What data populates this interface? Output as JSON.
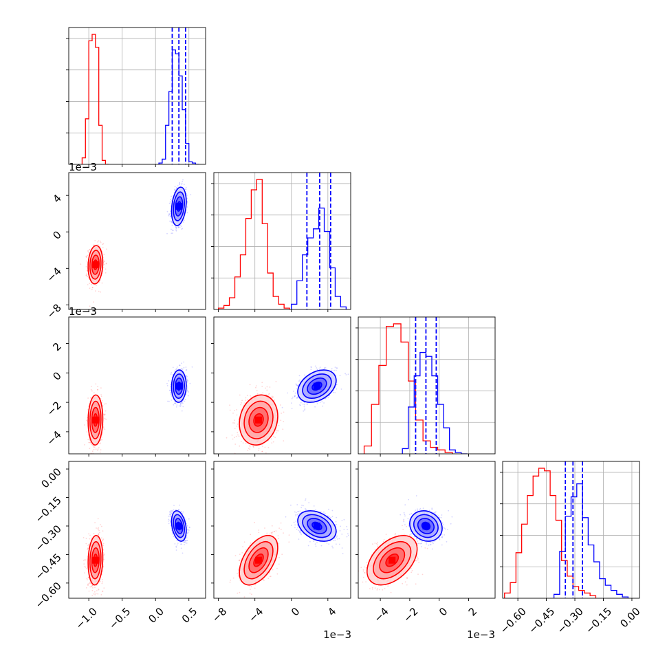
{
  "chart_data": {
    "type": "corner",
    "parameters": 4,
    "axis_labels": [
      "",
      "",
      "",
      ""
    ],
    "offset_labels": {
      "p1_x": "1e−3",
      "p1_y": "1e−3",
      "p2_x": "1e−3",
      "p2_y": "1e−3"
    },
    "ranges": [
      [
        -1.3,
        0.75
      ],
      [
        -0.0085,
        0.0065
      ],
      [
        -0.0055,
        0.0038
      ],
      [
        -0.68,
        0.04
      ]
    ],
    "ticks": [
      {
        "values": [
          -1.0,
          -0.5,
          0.0,
          0.5
        ],
        "labels": [
          "−1.0",
          "−0.5",
          "0.0",
          "0.5"
        ]
      },
      {
        "values": [
          -0.008,
          -0.004,
          0.0,
          0.004
        ],
        "labels": [
          "−8",
          "−4",
          "0",
          "4"
        ]
      },
      {
        "values": [
          -0.004,
          -0.002,
          0.0,
          0.002
        ],
        "labels": [
          "−4",
          "−2",
          "0",
          "2"
        ]
      },
      {
        "values": [
          -0.6,
          -0.45,
          -0.3,
          -0.15,
          0.0
        ],
        "labels": [
          "−0.60",
          "−0.45",
          "−0.30",
          "−0.15",
          "0.00"
        ]
      }
    ],
    "series": [
      {
        "color": "#ff0000",
        "mean": [
          -0.9,
          -0.0036,
          -0.0032,
          -0.48
        ],
        "sd": [
          0.055,
          0.00105,
          0.00085,
          0.065
        ],
        "corr": [
          [
            1,
            0.1,
            0.05,
            0.1
          ],
          [
            0.1,
            1,
            0.15,
            0.5
          ],
          [
            0.05,
            0.15,
            1,
            0.45
          ],
          [
            0.1,
            0.5,
            0.45,
            1
          ]
        ],
        "hist": [
          {
            "edges": [
              -1.1,
              -1.05,
              -1.0,
              -0.95,
              -0.9,
              -0.85,
              -0.8,
              -0.75,
              -0.7
            ],
            "heights": [
              0.05,
              0.35,
              0.95,
              1.0,
              0.9,
              0.3,
              0.03,
              0.0
            ]
          },
          {
            "edges": [
              -0.008,
              -0.0074,
              -0.0068,
              -0.0062,
              -0.0056,
              -0.005,
              -0.0044,
              -0.0038,
              -0.0032,
              -0.0026,
              -0.002,
              -0.0014,
              -0.0008,
              -0.0002
            ],
            "heights": [
              0.01,
              0.03,
              0.09,
              0.25,
              0.42,
              0.7,
              0.92,
              1.0,
              0.66,
              0.28,
              0.1,
              0.04,
              0.01
            ]
          },
          {
            "edges": [
              -0.0051,
              -0.0046,
              -0.0041,
              -0.0036,
              -0.0031,
              -0.0026,
              -0.0021,
              -0.0016,
              -0.0011,
              -0.0006,
              -0.0001,
              0.0004,
              0.0009
            ],
            "heights": [
              0.06,
              0.38,
              0.68,
              0.98,
              1.0,
              0.86,
              0.56,
              0.26,
              0.1,
              0.05,
              0.03,
              0.01
            ]
          },
          {
            "edges": [
              -0.67,
              -0.64,
              -0.61,
              -0.58,
              -0.55,
              -0.52,
              -0.49,
              -0.46,
              -0.43,
              -0.4,
              -0.37,
              -0.34,
              -0.31,
              -0.28,
              -0.25,
              -0.22,
              -0.19
            ],
            "heights": [
              0.04,
              0.12,
              0.35,
              0.57,
              0.79,
              0.94,
              1.0,
              0.98,
              0.79,
              0.6,
              0.29,
              0.17,
              0.09,
              0.06,
              0.04,
              0.02
            ]
          }
        ]
      },
      {
        "color": "#0000ff",
        "mean": [
          0.35,
          0.0028,
          -0.0009,
          -0.3
        ],
        "sd": [
          0.055,
          0.00105,
          0.00055,
          0.04
        ],
        "corr": [
          [
            1,
            0.25,
            0.05,
            -0.3
          ],
          [
            0.25,
            1,
            0.35,
            -0.35
          ],
          [
            0.05,
            0.35,
            1,
            -0.15
          ],
          [
            -0.3,
            -0.35,
            -0.15,
            1
          ]
        ],
        "quantiles": [
          [
            0.25,
            0.35,
            0.45
          ],
          [
            0.0017,
            0.0031,
            0.0043
          ],
          [
            -0.0016,
            -0.0009,
            -0.0002
          ],
          [
            -0.35,
            -0.31,
            -0.26
          ]
        ],
        "hist": [
          {
            "edges": [
              0.05,
              0.1,
              0.15,
              0.2,
              0.25,
              0.3,
              0.35,
              0.4,
              0.45,
              0.5,
              0.55,
              0.6,
              0.65
            ],
            "heights": [
              0.01,
              0.04,
              0.3,
              0.56,
              0.88,
              0.85,
              0.68,
              0.42,
              0.16,
              0.02,
              0.01,
              0.0
            ]
          },
          {
            "edges": [
              0.0,
              0.0006,
              0.0012,
              0.0018,
              0.0024,
              0.003,
              0.0036,
              0.0042,
              0.0048,
              0.0054,
              0.006
            ],
            "heights": [
              0.04,
              0.22,
              0.42,
              0.55,
              0.62,
              0.78,
              0.6,
              0.32,
              0.1,
              0.02
            ]
          },
          {
            "edges": [
              -0.0025,
              -0.0021,
              -0.0017,
              -0.0013,
              -0.0009,
              -0.0005,
              -0.0001,
              0.0003,
              0.0007,
              0.0011,
              0.0015,
              0.0019
            ],
            "heights": [
              0.04,
              0.36,
              0.6,
              0.78,
              0.75,
              0.6,
              0.38,
              0.2,
              0.03,
              0.01,
              0.0
            ]
          },
          {
            "edges": [
              -0.41,
              -0.38,
              -0.35,
              -0.32,
              -0.29,
              -0.26,
              -0.23,
              -0.2,
              -0.17,
              -0.14,
              -0.11,
              -0.08,
              -0.05,
              -0.02
            ],
            "heights": [
              0.03,
              0.36,
              0.63,
              0.78,
              0.88,
              0.62,
              0.41,
              0.28,
              0.15,
              0.1,
              0.06,
              0.03,
              0.01
            ]
          }
        ]
      }
    ]
  }
}
